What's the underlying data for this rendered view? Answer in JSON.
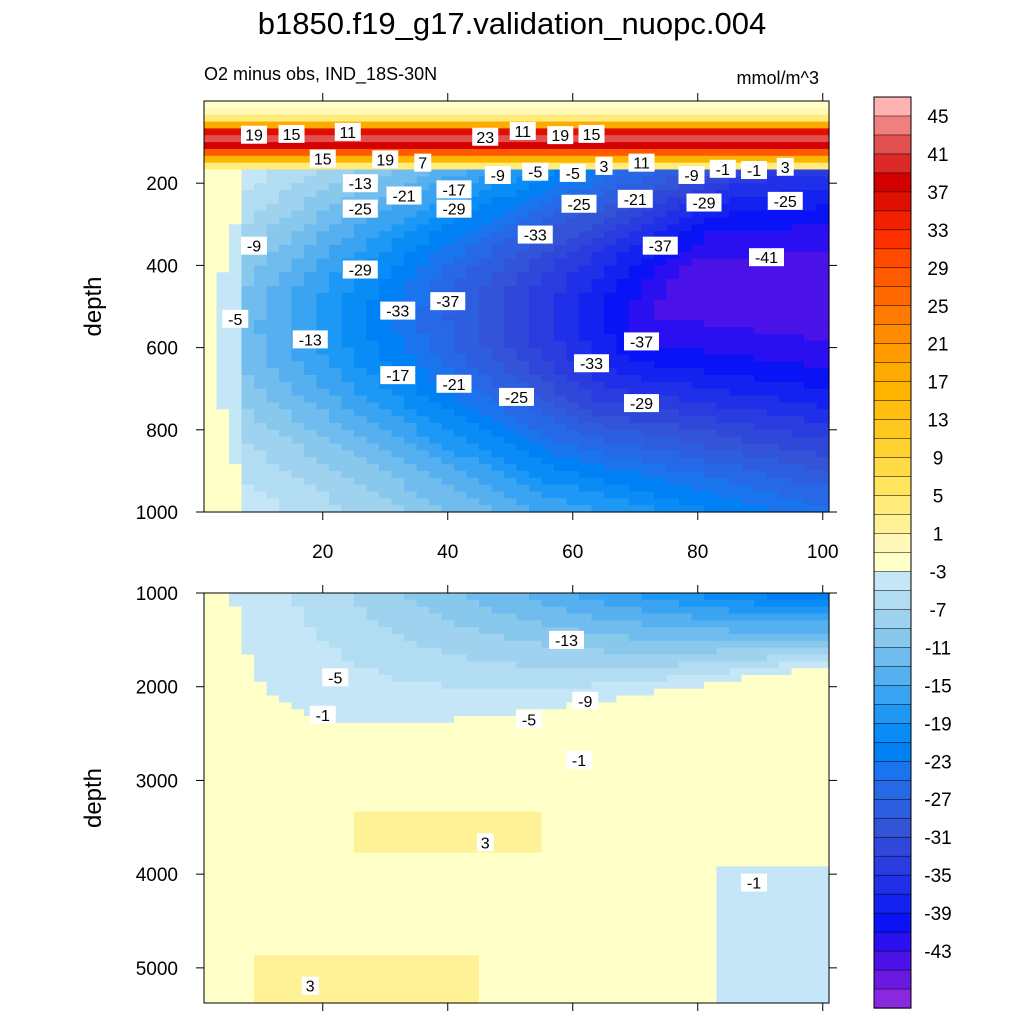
{
  "title": "b1850.f19_g17.validation_nuopc.004",
  "subtitle": "O2 minus obs, IND_18S-30N",
  "units": "mmol/m^3",
  "chart_data": {
    "type": "heatmap",
    "title": "b1850.f19_g17.validation_nuopc.004",
    "subtitle": "O2 minus obs, IND_18S-30N",
    "units": "mmol/m^3",
    "panels": [
      {
        "name": "upper",
        "ylabel": "depth",
        "ylim": [
          0,
          1000
        ],
        "xlim": [
          1,
          101
        ],
        "yticks": [
          200,
          400,
          600,
          800,
          1000
        ],
        "xticks": [
          20,
          40,
          60,
          80,
          100
        ],
        "contour_labels": [
          {
            "x": 9,
            "y": 82,
            "value": "19"
          },
          {
            "x": 15,
            "y": 80,
            "value": "15"
          },
          {
            "x": 24,
            "y": 75,
            "value": "11"
          },
          {
            "x": 46,
            "y": 87,
            "value": "23"
          },
          {
            "x": 52,
            "y": 73,
            "value": "11"
          },
          {
            "x": 58,
            "y": 83,
            "value": "19"
          },
          {
            "x": 63,
            "y": 80,
            "value": "15"
          },
          {
            "x": 20,
            "y": 140,
            "value": "15"
          },
          {
            "x": 30,
            "y": 142,
            "value": "19"
          },
          {
            "x": 36,
            "y": 150,
            "value": "7"
          },
          {
            "x": 48,
            "y": 180,
            "value": "-9"
          },
          {
            "x": 54,
            "y": 172,
            "value": "-5"
          },
          {
            "x": 60,
            "y": 175,
            "value": "-5"
          },
          {
            "x": 65,
            "y": 158,
            "value": "3"
          },
          {
            "x": 71,
            "y": 150,
            "value": "11"
          },
          {
            "x": 79,
            "y": 180,
            "value": "-9"
          },
          {
            "x": 84,
            "y": 165,
            "value": "-1"
          },
          {
            "x": 89,
            "y": 168,
            "value": "-1"
          },
          {
            "x": 94,
            "y": 160,
            "value": "3"
          },
          {
            "x": 26,
            "y": 200,
            "value": "-13"
          },
          {
            "x": 33,
            "y": 230,
            "value": "-21"
          },
          {
            "x": 41,
            "y": 215,
            "value": "-17"
          },
          {
            "x": 26,
            "y": 262,
            "value": "-25"
          },
          {
            "x": 41,
            "y": 262,
            "value": "-29"
          },
          {
            "x": 61,
            "y": 250,
            "value": "-25"
          },
          {
            "x": 70,
            "y": 238,
            "value": "-21"
          },
          {
            "x": 81,
            "y": 247,
            "value": "-29"
          },
          {
            "x": 94,
            "y": 243,
            "value": "-25"
          },
          {
            "x": 9,
            "y": 352,
            "value": "-9"
          },
          {
            "x": 54,
            "y": 325,
            "value": "-33"
          },
          {
            "x": 74,
            "y": 352,
            "value": "-37"
          },
          {
            "x": 26,
            "y": 410,
            "value": "-29"
          },
          {
            "x": 91,
            "y": 380,
            "value": "-41"
          },
          {
            "x": 32,
            "y": 510,
            "value": "-33"
          },
          {
            "x": 40,
            "y": 487,
            "value": "-37"
          },
          {
            "x": 6,
            "y": 530,
            "value": "-5"
          },
          {
            "x": 18,
            "y": 580,
            "value": "-13"
          },
          {
            "x": 71,
            "y": 585,
            "value": "-37"
          },
          {
            "x": 63,
            "y": 638,
            "value": "-33"
          },
          {
            "x": 32,
            "y": 667,
            "value": "-17"
          },
          {
            "x": 41,
            "y": 688,
            "value": "-21"
          },
          {
            "x": 51,
            "y": 720,
            "value": "-25"
          },
          {
            "x": 71,
            "y": 735,
            "value": "-29"
          }
        ]
      },
      {
        "name": "lower",
        "ylabel": "depth",
        "ylim": [
          1000,
          5375
        ],
        "xlim": [
          1,
          101
        ],
        "yticks": [
          1000,
          2000,
          3000,
          4000,
          5000
        ],
        "contour_labels": [
          {
            "x": 59,
            "y": 1500,
            "value": "-13"
          },
          {
            "x": 22,
            "y": 1900,
            "value": "-5"
          },
          {
            "x": 62,
            "y": 2150,
            "value": "-9"
          },
          {
            "x": 20,
            "y": 2300,
            "value": "-1"
          },
          {
            "x": 53,
            "y": 2350,
            "value": "-5"
          },
          {
            "x": 61,
            "y": 2780,
            "value": "-1"
          },
          {
            "x": 46,
            "y": 3660,
            "value": "3"
          },
          {
            "x": 89,
            "y": 4090,
            "value": "-1"
          },
          {
            "x": 18,
            "y": 5190,
            "value": "3"
          }
        ]
      }
    ],
    "colorbar": {
      "labels": [
        "45",
        "41",
        "37",
        "33",
        "29",
        "25",
        "21",
        "17",
        "13",
        "9",
        "5",
        "1",
        "-3",
        "-7",
        "-11",
        "-15",
        "-19",
        "-23",
        "-27",
        "-31",
        "-35",
        "-39",
        "-43"
      ],
      "levels": [
        47,
        45,
        43,
        41,
        39,
        37,
        35,
        33,
        31,
        29,
        27,
        25,
        23,
        21,
        19,
        17,
        15,
        13,
        11,
        9,
        7,
        5,
        3,
        1,
        -1,
        -3,
        -5,
        -7,
        -9,
        -11,
        -13,
        -15,
        -17,
        -19,
        -21,
        -23,
        -25,
        -27,
        -29,
        -31,
        -33,
        -35,
        -37,
        -39,
        -41,
        -43,
        -45
      ],
      "colors": [
        "#ffb3b3",
        "#f08080",
        "#e35050",
        "#dc2a2a",
        "#d40000",
        "#e01000",
        "#f02000",
        "#ff3000",
        "#ff4a00",
        "#ff5a00",
        "#ff6a00",
        "#ff7a00",
        "#ff8c00",
        "#ff9c00",
        "#ffaa00",
        "#ffb400",
        "#ffbe10",
        "#ffc820",
        "#ffd232",
        "#ffdc46",
        "#ffe45e",
        "#ffec7a",
        "#fff296",
        "#fff8b8",
        "#ffffc8",
        "#c5e6f6",
        "#b2dcf2",
        "#9ed2ef",
        "#88c8ed",
        "#70bcee",
        "#56b0ef",
        "#3aa4f2",
        "#1e98f5",
        "#0a8cf7",
        "#0080f5",
        "#1a74ee",
        "#2668e6",
        "#2e5ee0",
        "#3454d8",
        "#3048da",
        "#2a3ce0",
        "#2030e8",
        "#1422f0",
        "#0a12f6",
        "#2a10f0",
        "#4a12e6",
        "#6a1ae0",
        "#8a28e0"
      ]
    }
  }
}
